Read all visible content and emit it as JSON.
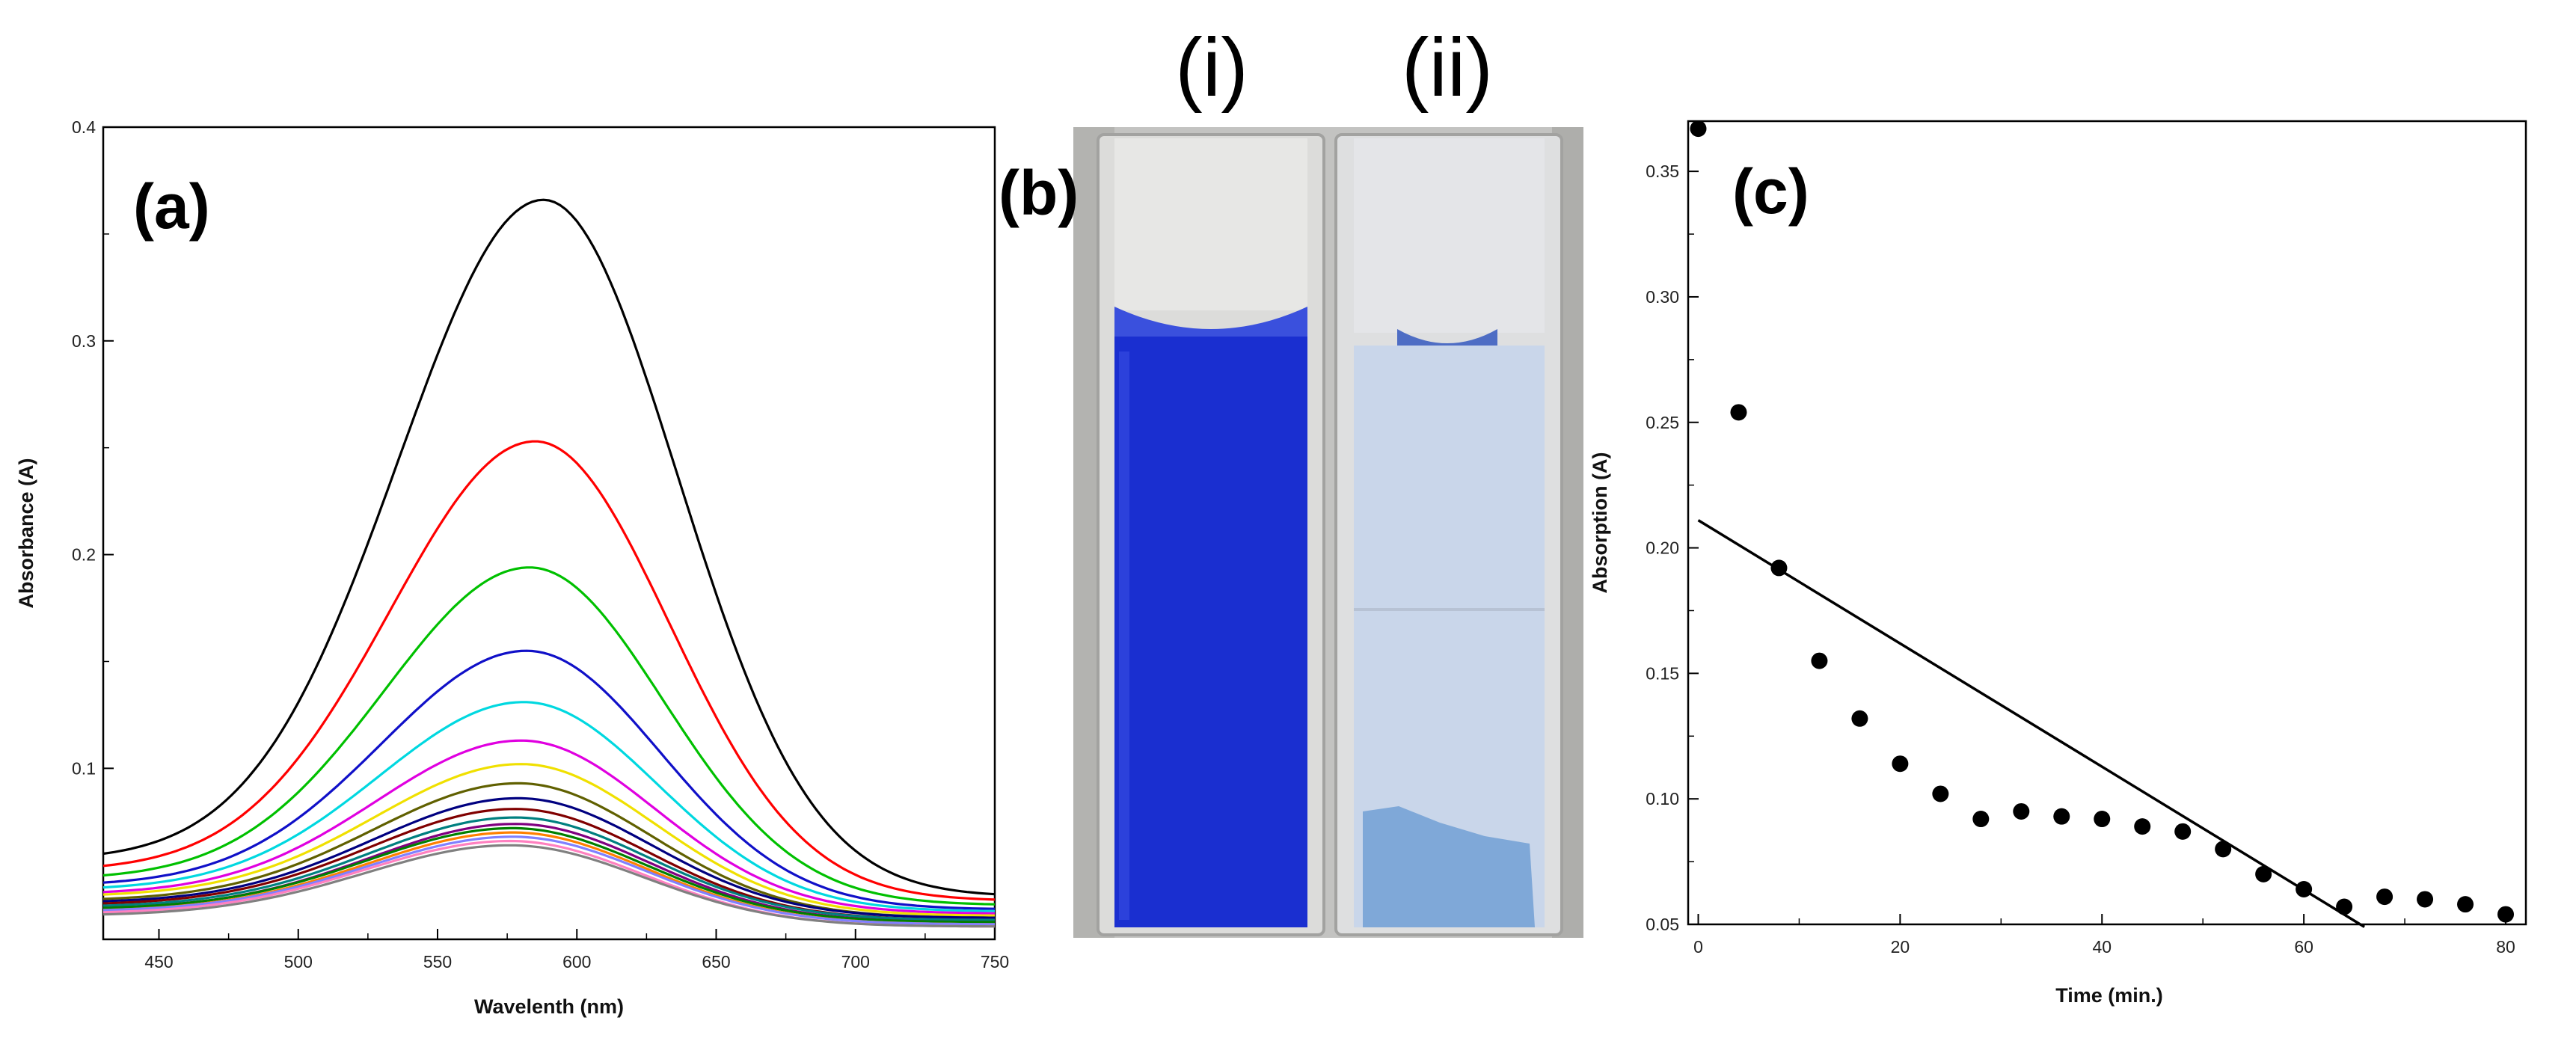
{
  "figure": {
    "panel_a_label": "(a)",
    "panel_b_label": "(b)",
    "panel_c_label": "(c)",
    "cuvette_i_label": "(i)",
    "cuvette_ii_label": "(ii)",
    "cuvette_i_color": "#1a2fd0",
    "cuvette_ii_color": "#c9d6ea",
    "sediment_color": "#7fa8d8"
  },
  "chart_data": [
    {
      "type": "line",
      "panel": "(a)",
      "xlabel": "Wavelenth (nm)",
      "ylabel": "Absorbance (A)",
      "xlim": [
        430,
        750
      ],
      "ylim": [
        0.02,
        0.4
      ],
      "xticks": [
        450,
        500,
        550,
        600,
        650,
        700,
        750
      ],
      "yticks": [
        0.1,
        0.2,
        0.3,
        0.4
      ],
      "yticklabels": [
        "0.1",
        "0.2",
        "0.3",
        "0.4"
      ],
      "grid": false,
      "series": [
        {
          "color": "#000000",
          "peak": 0.366,
          "peak_x": 588,
          "left_end": 0.057,
          "right_end": 0.04
        },
        {
          "color": "#ff0000",
          "peak": 0.253,
          "peak_x": 585,
          "left_end": 0.052,
          "right_end": 0.038
        },
        {
          "color": "#00c000",
          "peak": 0.194,
          "peak_x": 583,
          "left_end": 0.048,
          "right_end": 0.036
        },
        {
          "color": "#1010c8",
          "peak": 0.155,
          "peak_x": 582,
          "left_end": 0.045,
          "right_end": 0.034
        },
        {
          "color": "#00d8e0",
          "peak": 0.131,
          "peak_x": 581,
          "left_end": 0.043,
          "right_end": 0.033
        },
        {
          "color": "#e000e0",
          "peak": 0.113,
          "peak_x": 580,
          "left_end": 0.041,
          "right_end": 0.032
        },
        {
          "color": "#f0e000",
          "peak": 0.102,
          "peak_x": 580,
          "left_end": 0.04,
          "right_end": 0.031
        },
        {
          "color": "#606000",
          "peak": 0.093,
          "peak_x": 579,
          "left_end": 0.038,
          "right_end": 0.03
        },
        {
          "color": "#000080",
          "peak": 0.086,
          "peak_x": 579,
          "left_end": 0.037,
          "right_end": 0.03
        },
        {
          "color": "#800000",
          "peak": 0.081,
          "peak_x": 578,
          "left_end": 0.036,
          "right_end": 0.029
        },
        {
          "color": "#008080",
          "peak": 0.077,
          "peak_x": 578,
          "left_end": 0.035,
          "right_end": 0.029
        },
        {
          "color": "#800080",
          "peak": 0.074,
          "peak_x": 578,
          "left_end": 0.034,
          "right_end": 0.028
        },
        {
          "color": "#008000",
          "peak": 0.072,
          "peak_x": 577,
          "left_end": 0.034,
          "right_end": 0.028
        },
        {
          "color": "#ff8000",
          "peak": 0.07,
          "peak_x": 577,
          "left_end": 0.033,
          "right_end": 0.027
        },
        {
          "color": "#8080ff",
          "peak": 0.068,
          "peak_x": 577,
          "left_end": 0.033,
          "right_end": 0.027
        },
        {
          "color": "#ff80c0",
          "peak": 0.066,
          "peak_x": 576,
          "left_end": 0.032,
          "right_end": 0.026
        },
        {
          "color": "#808080",
          "peak": 0.064,
          "peak_x": 576,
          "left_end": 0.031,
          "right_end": 0.026
        }
      ]
    },
    {
      "type": "scatter",
      "panel": "(c)",
      "xlabel": "Time (min.)",
      "ylabel": "Absorption (A)",
      "xlim": [
        -1,
        82
      ],
      "ylim": [
        0.05,
        0.37
      ],
      "xticks": [
        0,
        20,
        40,
        60,
        80
      ],
      "yticks": [
        0.05,
        0.1,
        0.15,
        0.2,
        0.25,
        0.3,
        0.35
      ],
      "yticklabels": [
        "0.05",
        "0.10",
        "0.15",
        "0.20",
        "0.25",
        "0.30",
        "0.35"
      ],
      "grid": false,
      "x": [
        0,
        4,
        8,
        12,
        16,
        20,
        24,
        28,
        32,
        36,
        40,
        44,
        48,
        52,
        56,
        60,
        64,
        68,
        72,
        76,
        80
      ],
      "y": [
        0.367,
        0.254,
        0.192,
        0.155,
        0.132,
        0.114,
        0.102,
        0.092,
        0.095,
        0.093,
        0.092,
        0.089,
        0.087,
        0.08,
        0.07,
        0.064,
        0.057,
        0.061,
        0.06,
        0.058,
        0.054
      ],
      "fit_line": {
        "x": [
          0,
          66
        ],
        "y": [
          0.211,
          0.049
        ]
      }
    }
  ]
}
